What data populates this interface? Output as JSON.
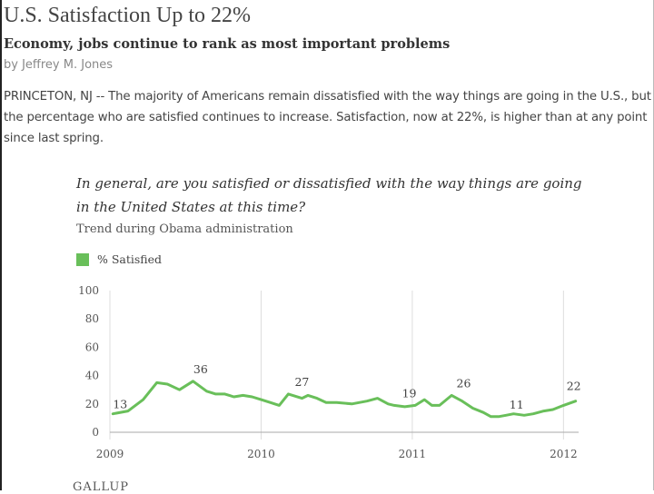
{
  "article": {
    "headline": "U.S. Satisfaction Up to 22%",
    "subhead": "Economy, jobs continue to rank as most important problems",
    "byline": "by Jeffrey M. Jones",
    "body": "PRINCETON, NJ -- The majority of Americans remain dissatisfied with the way things are going in the U.S., but the percentage who are satisfied continues to increase. Satisfaction, now at 22%, is higher than at any point since last spring."
  },
  "chart": {
    "question": "In general, are you satisfied or dissatisfied with the way things are going in the United States at this time?",
    "subtitle": "Trend during Obama administration",
    "source": "GALLUP"
  },
  "colors": {
    "line": "#69bf5a",
    "grid": "#dddddd",
    "axis": "#aaaaaa",
    "tick_text": "#555555"
  },
  "chart_data": {
    "type": "line",
    "title": "In general, are you satisfied or dissatisfied with the way things are going in the United States at this time?",
    "subtitle": "Trend during Obama administration",
    "xlabel": "",
    "ylabel": "",
    "xlim": [
      2009.0,
      2012.1
    ],
    "ylim": [
      0,
      100
    ],
    "yticks": [
      0,
      20,
      40,
      60,
      80,
      100
    ],
    "xticks": [
      {
        "value": 2009,
        "label": "2009"
      },
      {
        "value": 2010,
        "label": "2010"
      },
      {
        "value": 2011,
        "label": "2011"
      },
      {
        "value": 2012,
        "label": "2012"
      }
    ],
    "grid": "vertical",
    "legend": "top-left",
    "series": [
      {
        "name": "% Satisfied",
        "x": [
          2009.02,
          2009.12,
          2009.22,
          2009.31,
          2009.38,
          2009.46,
          2009.55,
          2009.64,
          2009.7,
          2009.76,
          2009.82,
          2009.88,
          2009.94,
          2010.0,
          2010.06,
          2010.12,
          2010.18,
          2010.27,
          2010.31,
          2010.37,
          2010.43,
          2010.5,
          2010.6,
          2010.7,
          2010.77,
          2010.84,
          2010.88,
          2010.95,
          2011.02,
          2011.08,
          2011.13,
          2011.18,
          2011.26,
          2011.33,
          2011.4,
          2011.47,
          2011.52,
          2011.57,
          2011.62,
          2011.67,
          2011.74,
          2011.8,
          2011.87,
          2011.93,
          2012.0,
          2012.08
        ],
        "y": [
          13,
          15,
          23,
          35,
          34,
          30,
          36,
          29,
          27,
          27,
          25,
          26,
          25,
          23,
          21,
          19,
          27,
          24,
          26,
          24,
          21,
          21,
          20,
          22,
          24,
          20,
          19,
          18,
          19,
          23,
          19,
          19,
          26,
          22,
          17,
          14,
          11,
          11,
          12,
          13,
          12,
          13,
          15,
          16,
          19,
          22
        ]
      }
    ],
    "annotations": [
      {
        "x": 2009.02,
        "y": 13,
        "label": "13"
      },
      {
        "x": 2009.6,
        "y": 36,
        "label": "36"
      },
      {
        "x": 2010.27,
        "y": 27,
        "label": "27"
      },
      {
        "x": 2010.98,
        "y": 19,
        "label": "19"
      },
      {
        "x": 2011.34,
        "y": 26,
        "label": "26"
      },
      {
        "x": 2011.69,
        "y": 11,
        "label": "11"
      },
      {
        "x": 2012.08,
        "y": 22,
        "label": "22"
      }
    ]
  }
}
